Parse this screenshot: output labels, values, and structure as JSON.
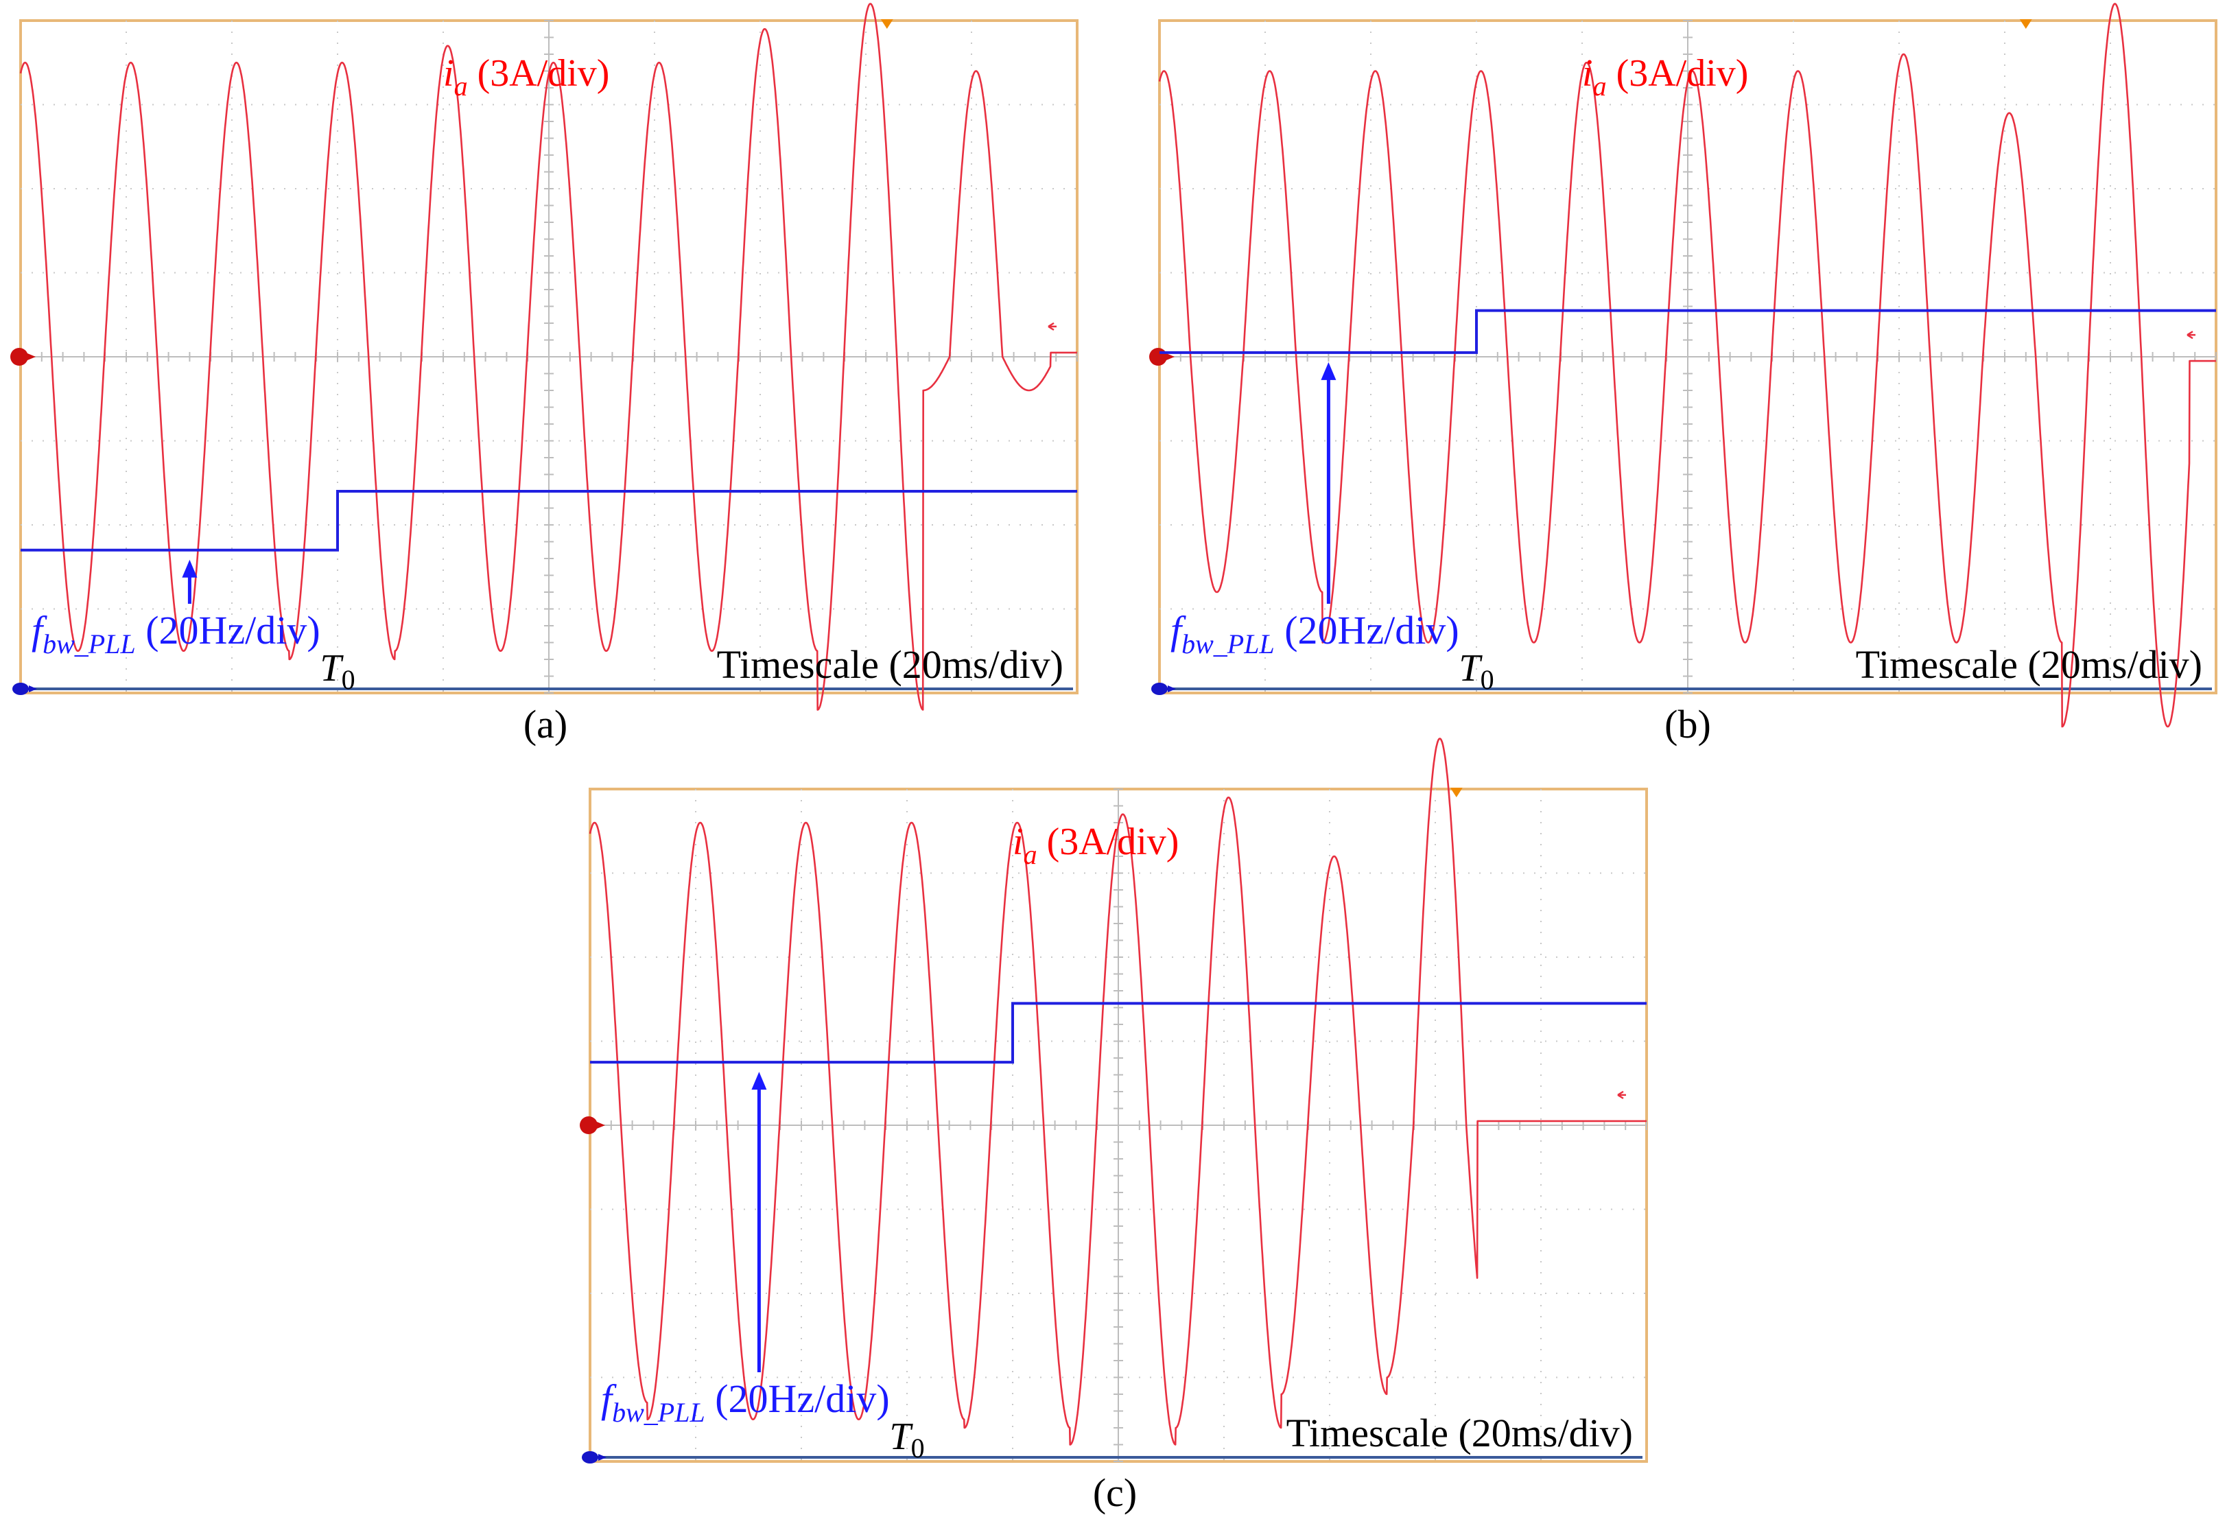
{
  "figure": {
    "panels": [
      {
        "id": "a",
        "caption": "(a)",
        "current_label": {
          "symbol": "i",
          "subscript": "a",
          "unit": "(3A/div)"
        },
        "bandwidth_label": {
          "symbol": "f",
          "subscript": "bw_PLL",
          "unit": "(20Hz/div)"
        },
        "time_marker": {
          "symbol": "T",
          "subscript": "0"
        },
        "timescale_label": "Timescale (20ms/div)"
      },
      {
        "id": "b",
        "caption": "(b)",
        "current_label": {
          "symbol": "i",
          "subscript": "a",
          "unit": "(3A/div)"
        },
        "bandwidth_label": {
          "symbol": "f",
          "subscript": "bw_PLL",
          "unit": "(20Hz/div)"
        },
        "time_marker": {
          "symbol": "T",
          "subscript": "0"
        },
        "timescale_label": "Timescale (20ms/div)"
      },
      {
        "id": "c",
        "caption": "(c)",
        "current_label": {
          "symbol": "i",
          "subscript": "a",
          "unit": "(3A/div)"
        },
        "bandwidth_label": {
          "symbol": "f",
          "subscript": "bw_PLL",
          "unit": "(20Hz/div)"
        },
        "time_marker": {
          "symbol": "T",
          "subscript": "0"
        },
        "timescale_label": "Timescale (20ms/div)"
      }
    ]
  },
  "colors": {
    "frame": "#e8b878",
    "grid": "#c8c8c8",
    "current_trace": "#e83040",
    "bandwidth_trace": "#2020e0",
    "label_red": "#ff0000",
    "label_blue": "#1a1aff",
    "text": "#000000"
  },
  "chart_data": [
    {
      "panel": "a",
      "type": "line",
      "x_unit": "div",
      "xlim": [
        0,
        10
      ],
      "ylim": [
        -4,
        4
      ],
      "grid": true,
      "T0_div": 3,
      "series": [
        {
          "name": "i_a",
          "unit_per_div": "3A",
          "frequency_div": 1.0,
          "phase_rad": 1.3,
          "cycles": [
            {
              "max": 3.5,
              "min": -3.5
            },
            {
              "max": 3.5,
              "min": -3.5
            },
            {
              "max": 3.5,
              "min": -3.5
            },
            {
              "max": 3.5,
              "min": -3.6
            },
            {
              "max": 3.7,
              "min": -3.5
            },
            {
              "max": 3.5,
              "min": -3.5
            },
            {
              "max": 3.5,
              "min": -3.5
            },
            {
              "max": 3.9,
              "min": -3.5
            },
            {
              "max": 4.2,
              "min": -4.2
            },
            {
              "max": 3.4,
              "min": -0.4
            }
          ],
          "end_level_after_div": 9.75,
          "end_level": 0.05
        },
        {
          "name": "f_bw_PLL",
          "unit_per_div": "20Hz",
          "type": "step",
          "points": [
            [
              0,
              -2.3
            ],
            [
              3,
              -2.3
            ],
            [
              3,
              -1.6
            ],
            [
              10,
              -1.6
            ]
          ]
        }
      ]
    },
    {
      "panel": "b",
      "type": "line",
      "x_unit": "div",
      "xlim": [
        0,
        10
      ],
      "ylim": [
        -4,
        4
      ],
      "grid": true,
      "T0_div": 3,
      "series": [
        {
          "name": "i_a",
          "unit_per_div": "3A",
          "frequency_div": 1.0,
          "phase_rad": 1.3,
          "cycles": [
            {
              "max": 3.4,
              "min": -2.8
            },
            {
              "max": 3.4,
              "min": -2.8
            },
            {
              "max": 3.4,
              "min": -3.4
            },
            {
              "max": 3.4,
              "min": -3.4
            },
            {
              "max": 3.5,
              "min": -3.4
            },
            {
              "max": 3.4,
              "min": -3.4
            },
            {
              "max": 3.4,
              "min": -3.4
            },
            {
              "max": 3.6,
              "min": -3.4
            },
            {
              "max": 2.9,
              "min": -3.4
            },
            {
              "max": 4.2,
              "min": -4.4
            }
          ],
          "end_level_after_div": 9.75,
          "end_level": -0.05
        },
        {
          "name": "f_bw_PLL",
          "unit_per_div": "20Hz",
          "type": "step",
          "points": [
            [
              0,
              0.05
            ],
            [
              3,
              0.05
            ],
            [
              3,
              0.55
            ],
            [
              10,
              0.55
            ]
          ]
        }
      ]
    },
    {
      "panel": "c",
      "type": "line",
      "x_unit": "div",
      "xlim": [
        0,
        10
      ],
      "ylim": [
        -4,
        4
      ],
      "grid": true,
      "T0_div": 3,
      "series": [
        {
          "name": "i_a",
          "unit_per_div": "3A",
          "frequency_div": 1.0,
          "phase_rad": 1.3,
          "cycles": [
            {
              "max": 3.6,
              "min": -3.3
            },
            {
              "max": 3.6,
              "min": -3.5
            },
            {
              "max": 3.6,
              "min": -3.5
            },
            {
              "max": 3.6,
              "min": -3.5
            },
            {
              "max": 3.6,
              "min": -3.6
            },
            {
              "max": 3.7,
              "min": -3.8
            },
            {
              "max": 3.9,
              "min": -3.6
            },
            {
              "max": 3.2,
              "min": -3.2
            },
            {
              "max": 4.6,
              "min": -3.0
            },
            {
              "max": 0.5,
              "min": -0.5
            }
          ],
          "end_level_after_div": 8.4,
          "end_level": 0.05
        },
        {
          "name": "f_bw_PLL",
          "unit_per_div": "20Hz",
          "type": "step",
          "points": [
            [
              0,
              0.75
            ],
            [
              4,
              0.75
            ],
            [
              4,
              1.45
            ],
            [
              10,
              1.45
            ]
          ]
        }
      ]
    }
  ]
}
